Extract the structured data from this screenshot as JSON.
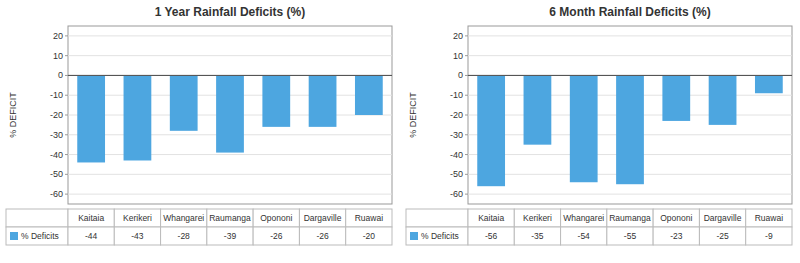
{
  "chart_data": [
    {
      "type": "bar",
      "title": "1 Year Rainfall Deficits (%)",
      "categories": [
        "Kaitaia",
        "Kerikeri",
        "Whangarei",
        "Raumanga",
        "Opononi",
        "Dargaville",
        "Ruawai"
      ],
      "series": [
        {
          "name": "% Deficits",
          "color": "#4da6e0",
          "values": [
            -44,
            -43,
            -28,
            -39,
            -26,
            -26,
            -20
          ]
        }
      ],
      "ylabel": "% DEFICIT",
      "ylim": [
        -65,
        25
      ],
      "yticks": [
        -60,
        -50,
        -40,
        -30,
        -20,
        -10,
        0,
        10,
        20
      ],
      "grid": true
    },
    {
      "type": "bar",
      "title": "6 Month Rainfall Deficits (%)",
      "categories": [
        "Kaitaia",
        "Kerikeri",
        "Whangarei",
        "Raumanga",
        "Opononi",
        "Dargaville",
        "Ruawai"
      ],
      "series": [
        {
          "name": "% Deficits",
          "color": "#4da6e0",
          "values": [
            -56,
            -35,
            -54,
            -55,
            -23,
            -25,
            -9
          ]
        }
      ],
      "ylabel": "% DEFICIT",
      "ylim": [
        -65,
        25
      ],
      "yticks": [
        -60,
        -50,
        -40,
        -30,
        -20,
        -10,
        0,
        10,
        20
      ],
      "grid": true
    }
  ]
}
